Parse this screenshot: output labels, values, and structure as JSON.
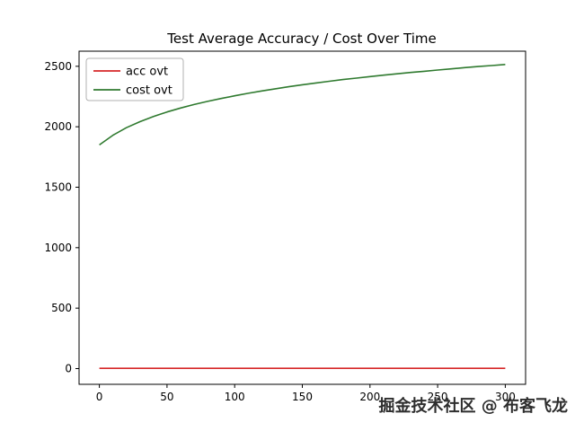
{
  "figure": {
    "background": "#ffffff"
  },
  "watermark": {
    "text": "掘金技术社区 @ 布客飞龙"
  },
  "chart_data": {
    "type": "line",
    "title": "Test Average Accuracy / Cost Over Time",
    "xlabel": "",
    "ylabel": "",
    "xlim": [
      -15,
      315
    ],
    "ylim": [
      -130,
      2625
    ],
    "x_ticks": [
      0,
      50,
      100,
      150,
      200,
      250,
      300
    ],
    "y_ticks": [
      0,
      500,
      1000,
      1500,
      2000,
      2500
    ],
    "grid": false,
    "legend": {
      "position": "upper-left",
      "entries": [
        {
          "label": "acc ovt",
          "color": "#d62728"
        },
        {
          "label": "cost ovt",
          "color": "#2f7a2f"
        }
      ]
    },
    "series": [
      {
        "name": "acc ovt",
        "color": "#d62728",
        "x": [
          0,
          25,
          50,
          75,
          100,
          125,
          150,
          175,
          200,
          225,
          250,
          275,
          300
        ],
        "y": [
          2,
          2,
          2,
          2,
          2,
          2,
          2,
          2,
          2,
          2,
          2,
          2,
          2
        ]
      },
      {
        "name": "cost ovt",
        "color": "#2f7a2f",
        "x": [
          0,
          10,
          20,
          30,
          40,
          50,
          60,
          70,
          80,
          90,
          100,
          110,
          120,
          130,
          140,
          150,
          160,
          170,
          180,
          190,
          200,
          210,
          220,
          230,
          240,
          250,
          260,
          270,
          280,
          290,
          300
        ],
        "y": [
          1850,
          1930,
          1992,
          2042,
          2085,
          2122,
          2155,
          2184,
          2210,
          2234,
          2256,
          2277,
          2296,
          2314,
          2331,
          2347,
          2362,
          2376,
          2390,
          2402,
          2415,
          2427,
          2438,
          2449,
          2459,
          2469,
          2479,
          2489,
          2498,
          2506,
          2515
        ]
      }
    ]
  }
}
